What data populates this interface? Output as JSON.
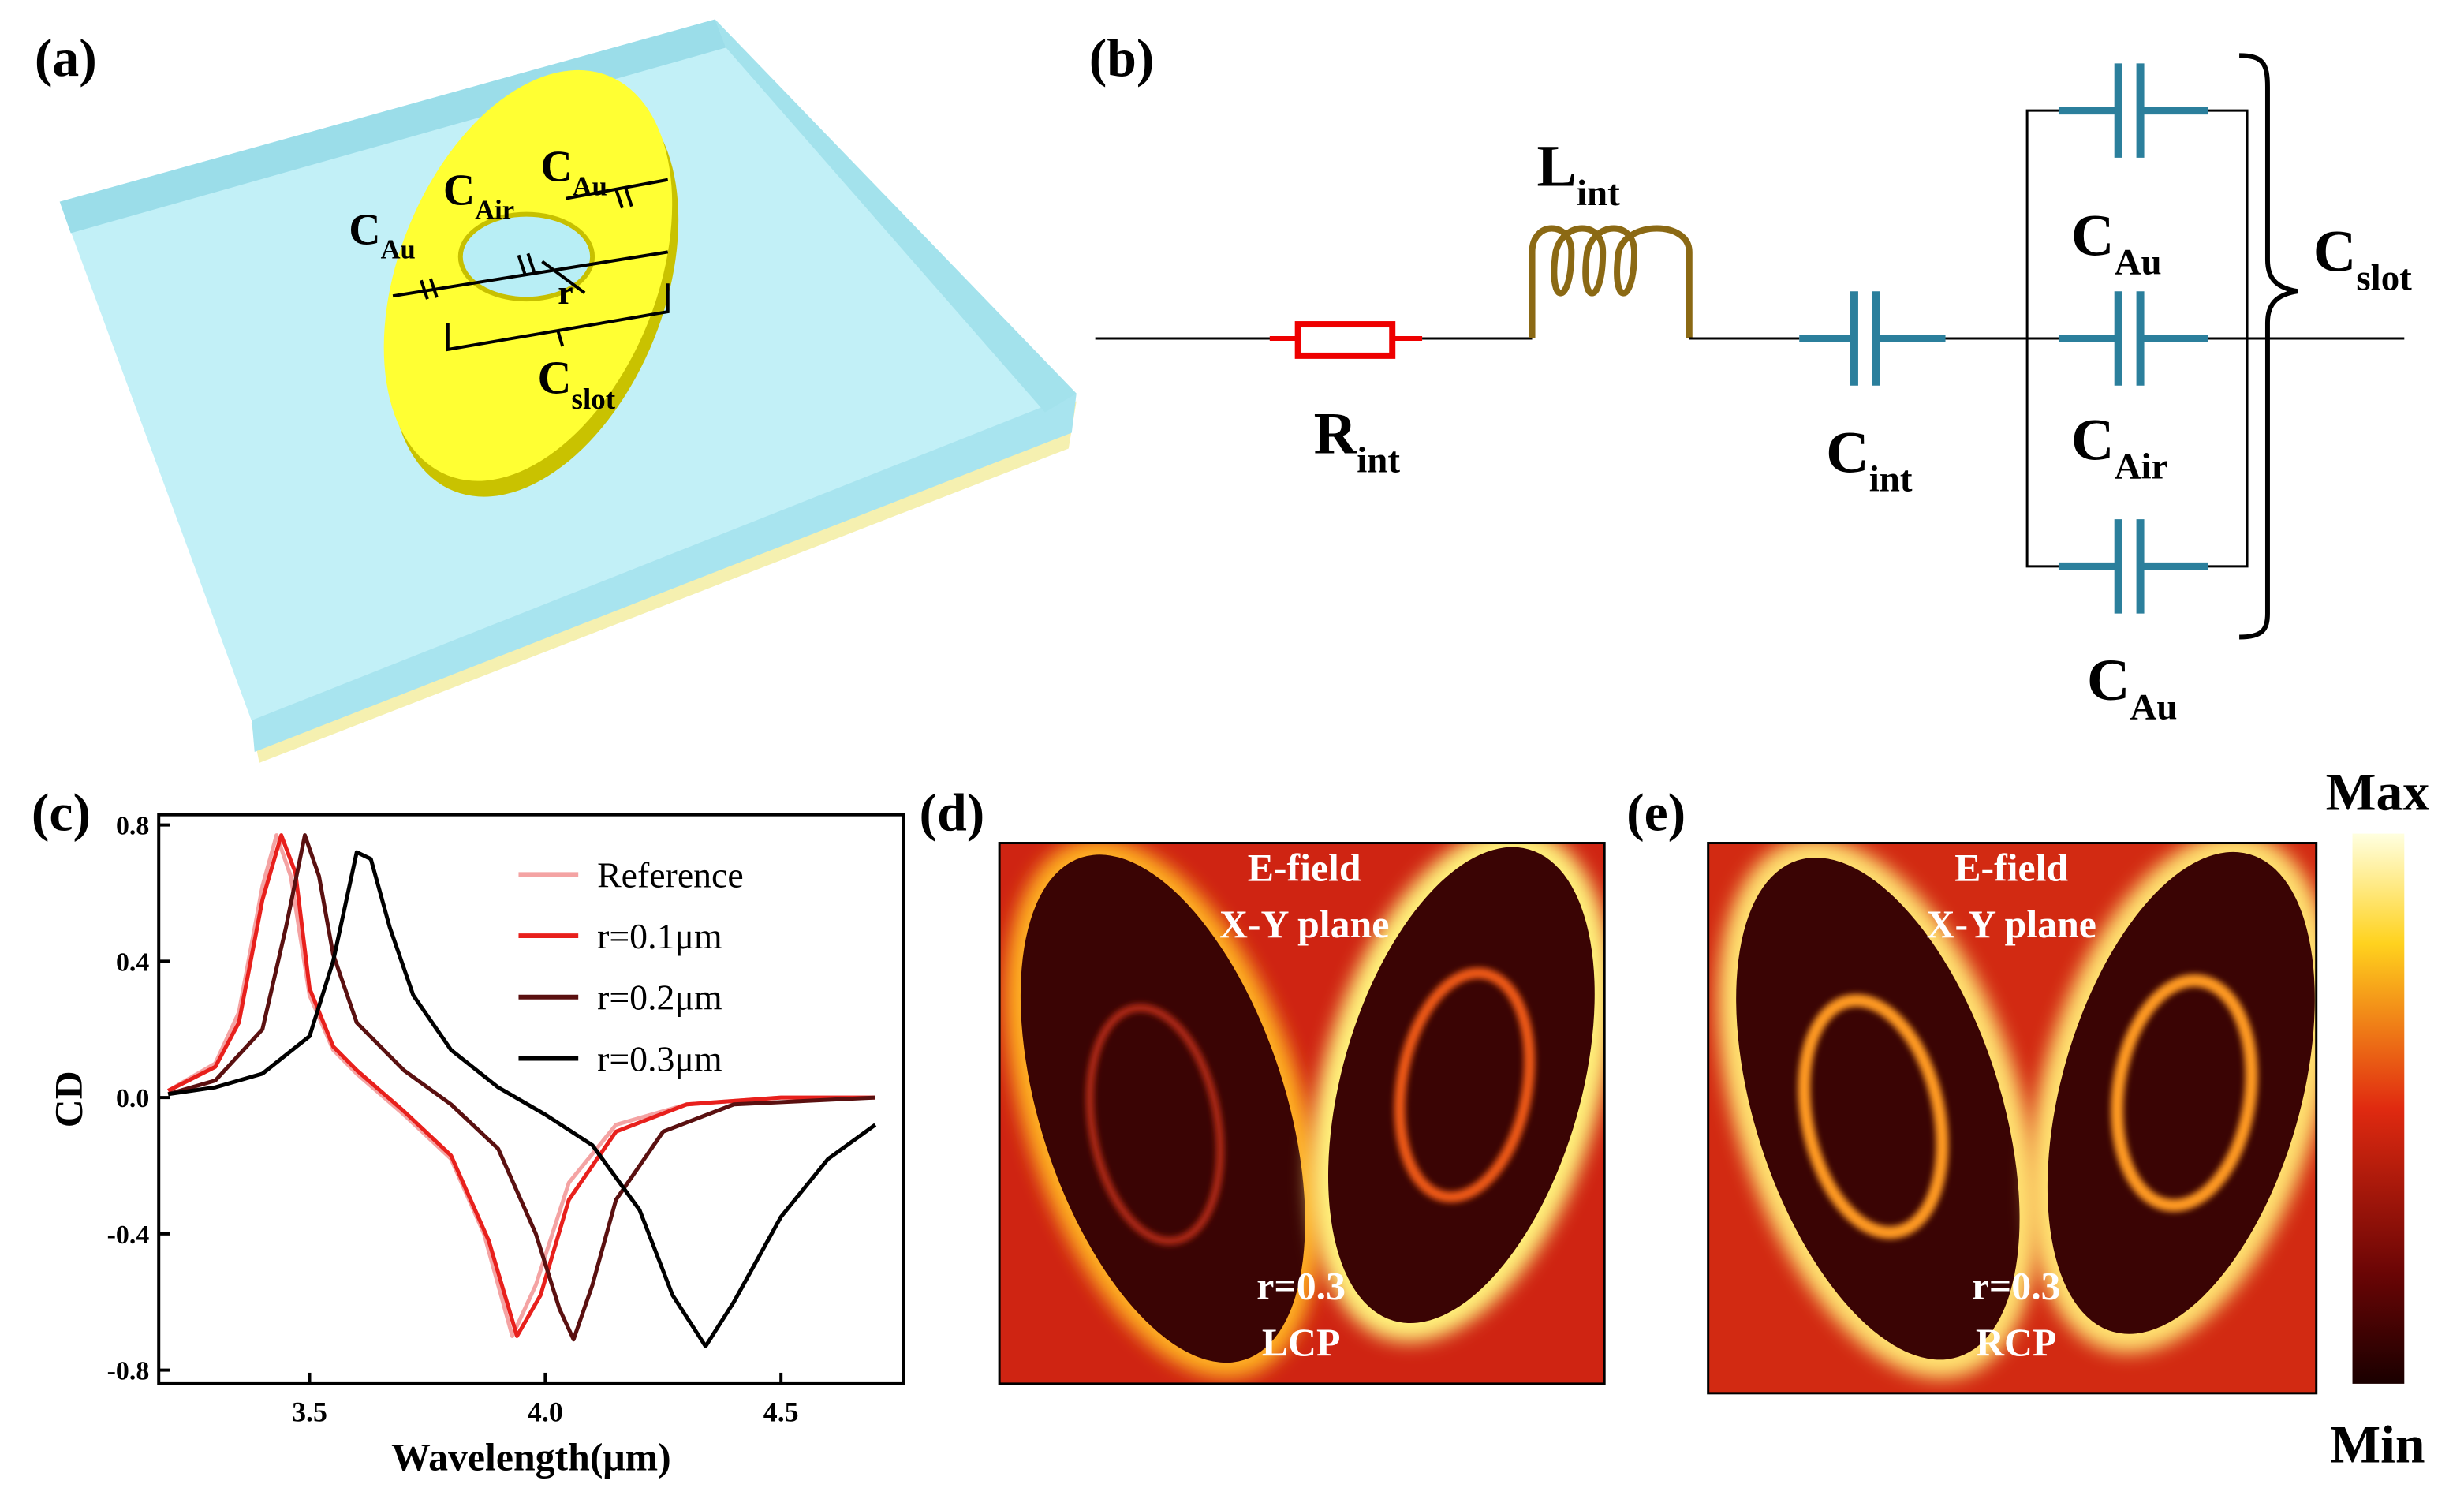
{
  "panel_labels": [
    "(a)",
    "(b)",
    "(c)",
    "(d)",
    "(e)"
  ],
  "structure": {
    "labels": [
      {
        "main": "C",
        "sub": "Au"
      },
      {
        "main": "C",
        "sub": "Air"
      },
      {
        "main": "C",
        "sub": "Au"
      },
      {
        "main": "r"
      },
      {
        "main": "C",
        "sub": "slot"
      }
    ]
  },
  "circuit": {
    "labels": [
      {
        "main": "L",
        "sub": "int"
      },
      {
        "main": "R",
        "sub": "int"
      },
      {
        "main": "C",
        "sub": "int"
      },
      {
        "main": "C",
        "sub": "Au"
      },
      {
        "main": "C",
        "sub": "Air"
      },
      {
        "main": "C",
        "sub": "Au"
      },
      {
        "main": "C",
        "sub": "slot"
      }
    ]
  },
  "chart_data": {
    "type": "line",
    "xlabel": "Wavelength(μm)",
    "ylabel": "CD",
    "xlim": [
      3.18,
      4.76
    ],
    "ylim": [
      -0.84,
      0.83
    ],
    "xticks": [
      3.5,
      {
        "value": 4,
        "label": "4.0"
      },
      4.5
    ],
    "yticks": [
      -0.8,
      -0.4,
      {
        "value": 0,
        "label": "0.0"
      },
      0.4,
      0.8
    ],
    "legend": "upper right",
    "series": [
      {
        "name": "Reference",
        "color": "#f4a3a3",
        "x": [
          3.2,
          3.3,
          3.35,
          3.4,
          3.43,
          3.46,
          3.5,
          3.55,
          3.6,
          3.7,
          3.8,
          3.87,
          3.93,
          3.98,
          4.05,
          4.15,
          4.3,
          4.5,
          4.7
        ],
        "values": [
          0.02,
          0.1,
          0.25,
          0.62,
          0.77,
          0.65,
          0.3,
          0.14,
          0.07,
          -0.05,
          -0.18,
          -0.4,
          -0.7,
          -0.55,
          -0.25,
          -0.08,
          -0.02,
          0,
          0
        ]
      },
      {
        "name": "r=0.1μm",
        "color": "#e8201c",
        "x": [
          3.2,
          3.3,
          3.35,
          3.4,
          3.44,
          3.47,
          3.5,
          3.55,
          3.6,
          3.7,
          3.8,
          3.88,
          3.94,
          3.99,
          4.05,
          4.15,
          4.3,
          4.5,
          4.7
        ],
        "values": [
          0.02,
          0.09,
          0.22,
          0.58,
          0.77,
          0.66,
          0.32,
          0.15,
          0.08,
          -0.04,
          -0.17,
          -0.42,
          -0.7,
          -0.58,
          -0.3,
          -0.1,
          -0.02,
          0,
          0
        ]
      },
      {
        "name": "r=0.2μm",
        "color": "#5a1010",
        "x": [
          3.2,
          3.3,
          3.4,
          3.45,
          3.49,
          3.52,
          3.55,
          3.6,
          3.7,
          3.8,
          3.9,
          3.98,
          4.03,
          4.06,
          4.1,
          4.15,
          4.25,
          4.4,
          4.7
        ],
        "values": [
          0.01,
          0.05,
          0.2,
          0.5,
          0.77,
          0.65,
          0.42,
          0.22,
          0.08,
          -0.02,
          -0.15,
          -0.4,
          -0.62,
          -0.71,
          -0.55,
          -0.3,
          -0.1,
          -0.02,
          0
        ]
      },
      {
        "name": "r=0.3μm",
        "color": "#000000",
        "x": [
          3.2,
          3.3,
          3.4,
          3.5,
          3.55,
          3.6,
          3.63,
          3.67,
          3.72,
          3.8,
          3.9,
          4.0,
          4.1,
          4.2,
          4.27,
          4.34,
          4.4,
          4.5,
          4.6,
          4.7
        ],
        "values": [
          0.01,
          0.03,
          0.07,
          0.18,
          0.4,
          0.72,
          0.7,
          0.5,
          0.3,
          0.14,
          0.03,
          -0.05,
          -0.14,
          -0.33,
          -0.58,
          -0.73,
          -0.6,
          -0.35,
          -0.18,
          -0.08
        ]
      }
    ]
  },
  "field_maps": [
    {
      "lines": [
        "E-field",
        "X-Y plane",
        "r=0.3",
        "LCP"
      ]
    },
    {
      "lines": [
        "E-field",
        "X-Y plane",
        "r=0.3",
        "RCP"
      ]
    }
  ],
  "colorbar": {
    "max": "Max",
    "min": "Min"
  }
}
